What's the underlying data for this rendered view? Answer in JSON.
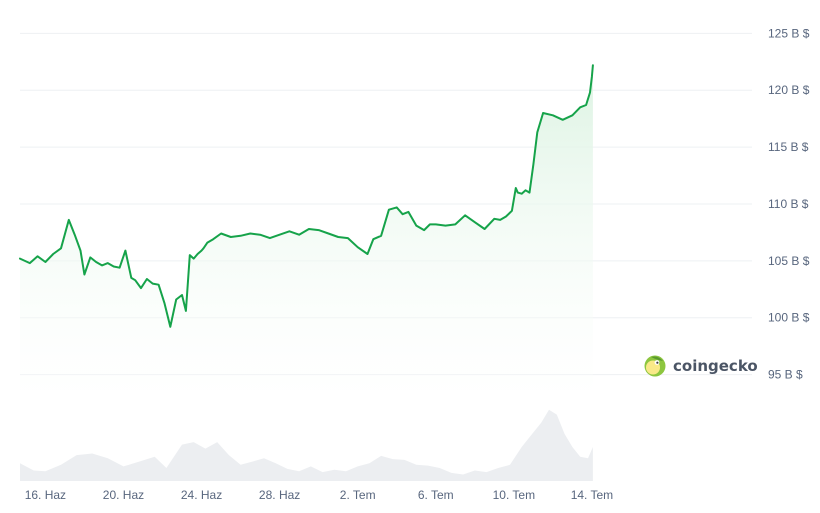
{
  "watermark": {
    "text": "coingecko",
    "logo": "coingecko-gecko-logo"
  },
  "colors": {
    "line": "#16a34a",
    "area_top": "#dcf3e2",
    "area_bottom": "#ffffff",
    "volume_fill": "#eceef1",
    "grid": "#eef0f3",
    "tick_text": "#58667e",
    "logo_green": "#8dc63f",
    "logo_yellow": "#f9e988"
  },
  "chart_data": [
    {
      "type": "line",
      "title": "",
      "xlabel": "",
      "ylabel": "",
      "y_unit": "B $",
      "ylim": [
        92.5,
        126
      ],
      "y_ticks": [
        {
          "value": 95,
          "label": "95 B $"
        },
        {
          "value": 100,
          "label": "100 B $"
        },
        {
          "value": 105,
          "label": "105 B $"
        },
        {
          "value": 110,
          "label": "110 B $"
        },
        {
          "value": 115,
          "label": "115 B $"
        },
        {
          "value": 120,
          "label": "120 B $"
        },
        {
          "value": 125,
          "label": "125 B $"
        }
      ],
      "x_range_days": [
        -1.3,
        36.2
      ],
      "x_ticks": [
        {
          "day": 0,
          "label": "16. Haz"
        },
        {
          "day": 4,
          "label": "20. Haz"
        },
        {
          "day": 8,
          "label": "24. Haz"
        },
        {
          "day": 12,
          "label": "28. Haz"
        },
        {
          "day": 16,
          "label": "2. Tem"
        },
        {
          "day": 20,
          "label": "6. Tem"
        },
        {
          "day": 24,
          "label": "10. Tem"
        },
        {
          "day": 28,
          "label": "14. Tem"
        }
      ],
      "grid": true,
      "legend": "none",
      "area_fill": true,
      "series": [
        {
          "x": [
            -1.3,
            -0.8,
            -0.4,
            0,
            0.4,
            0.8,
            1.2,
            1.5,
            1.8,
            2,
            2.3,
            2.6,
            2.9,
            3.2,
            3.5,
            3.8,
            4.1,
            4.4,
            4.6,
            4.9,
            5.2,
            5.5,
            5.8,
            6.1,
            6.4,
            6.7,
            7,
            7.2,
            7.4,
            7.6,
            7.8,
            8,
            8.1,
            8.3,
            8.6,
            9,
            9.5,
            10,
            10.5,
            11,
            11.5,
            12,
            12.5,
            13,
            13.5,
            14,
            14.5,
            15,
            15.5,
            16,
            16.5,
            16.8,
            17.2,
            17.6,
            18,
            18.3,
            18.6,
            19,
            19.4,
            19.7,
            20,
            20.5,
            21,
            21.5,
            22,
            22.5,
            23,
            23.3,
            23.6,
            23.9,
            24.1,
            24.2,
            24.4,
            24.6,
            24.8,
            25,
            25.2,
            25.5,
            26,
            26.5,
            27,
            27.4,
            27.7,
            27.9,
            28,
            28.05
          ],
          "y": [
            105.2,
            104.8,
            105.4,
            104.9,
            105.6,
            106.1,
            108.6,
            107.3,
            105.9,
            103.8,
            105.3,
            104.9,
            104.6,
            104.8,
            104.5,
            104.4,
            105.9,
            103.5,
            103.3,
            102.6,
            103.4,
            103.0,
            102.9,
            101.3,
            99.2,
            101.6,
            102.0,
            100.6,
            105.5,
            105.2,
            105.6,
            105.9,
            106.1,
            106.6,
            106.9,
            107.4,
            107.1,
            107.2,
            107.4,
            107.3,
            107.0,
            107.3,
            107.6,
            107.3,
            107.8,
            107.7,
            107.4,
            107.1,
            107.0,
            106.2,
            105.6,
            106.9,
            107.2,
            109.5,
            109.7,
            109.1,
            109.3,
            108.1,
            107.7,
            108.2,
            108.2,
            108.1,
            108.2,
            109.0,
            108.4,
            107.8,
            108.7,
            108.6,
            108.9,
            109.4,
            111.4,
            111.0,
            110.9,
            111.2,
            111.0,
            113.5,
            116.3,
            118.0,
            117.8,
            117.4,
            117.8,
            118.5,
            118.7,
            119.8,
            121.2,
            122.2
          ]
        }
      ],
      "volume_series": {
        "x": [
          -1.3,
          -0.6,
          0,
          0.8,
          1.6,
          2.4,
          3.2,
          4,
          4.8,
          5.6,
          6.2,
          7,
          7.6,
          8.2,
          8.8,
          9.4,
          10,
          10.6,
          11.2,
          11.8,
          12.4,
          13,
          13.6,
          14.2,
          14.8,
          15.4,
          16,
          16.6,
          17.2,
          17.8,
          18.4,
          19,
          19.6,
          20.2,
          20.8,
          21.4,
          22,
          22.6,
          23.2,
          23.8,
          24.4,
          25,
          25.4,
          25.8,
          26.2,
          26.6,
          27,
          27.4,
          27.8,
          28.05
        ],
        "y": [
          0.22,
          0.13,
          0.12,
          0.2,
          0.32,
          0.34,
          0.28,
          0.18,
          0.24,
          0.3,
          0.16,
          0.45,
          0.48,
          0.4,
          0.48,
          0.32,
          0.2,
          0.24,
          0.28,
          0.22,
          0.15,
          0.12,
          0.18,
          0.11,
          0.14,
          0.12,
          0.18,
          0.22,
          0.31,
          0.27,
          0.26,
          0.2,
          0.19,
          0.16,
          0.1,
          0.08,
          0.13,
          0.11,
          0.16,
          0.2,
          0.42,
          0.6,
          0.72,
          0.88,
          0.82,
          0.58,
          0.42,
          0.3,
          0.28,
          0.42
        ]
      }
    }
  ]
}
